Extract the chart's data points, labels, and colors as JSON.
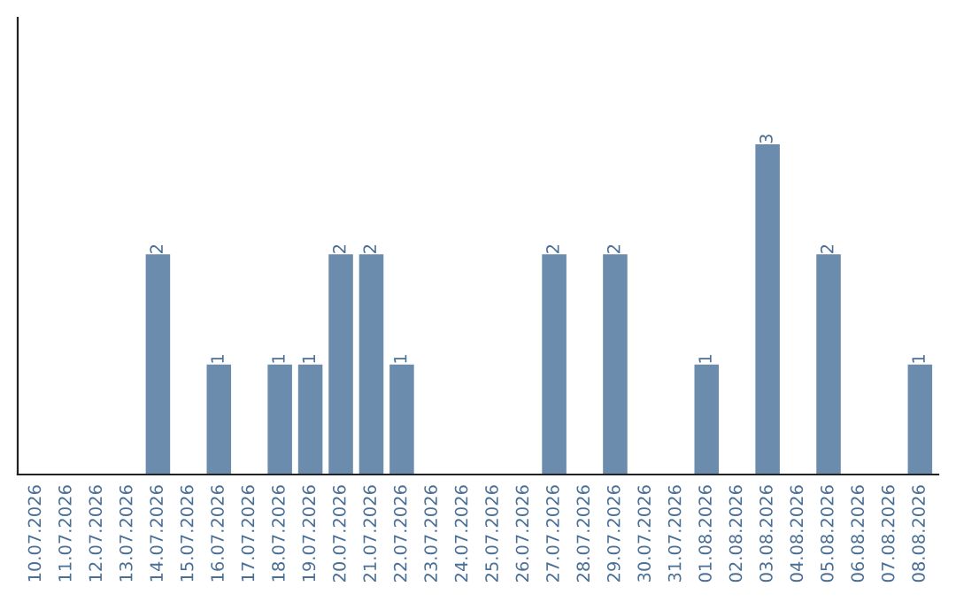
{
  "chart_data": {
    "type": "bar",
    "categories": [
      "10.07.2026",
      "11.07.2026",
      "12.07.2026",
      "13.07.2026",
      "14.07.2026",
      "15.07.2026",
      "16.07.2026",
      "17.07.2026",
      "18.07.2026",
      "19.07.2026",
      "20.07.2026",
      "21.07.2026",
      "22.07.2026",
      "23.07.2026",
      "24.07.2026",
      "25.07.2026",
      "26.07.2026",
      "27.07.2026",
      "28.07.2026",
      "29.07.2026",
      "30.07.2026",
      "31.07.2026",
      "01.08.2026",
      "02.08.2026",
      "03.08.2026",
      "04.08.2026",
      "05.08.2026",
      "06.08.2026",
      "07.08.2026",
      "08.08.2026"
    ],
    "values": [
      0,
      0,
      0,
      0,
      2,
      0,
      1,
      0,
      1,
      1,
      2,
      2,
      1,
      0,
      0,
      0,
      0,
      2,
      0,
      2,
      0,
      0,
      1,
      0,
      3,
      0,
      2,
      0,
      0,
      1
    ],
    "value_labels": [
      null,
      null,
      null,
      null,
      "2",
      null,
      "1",
      null,
      "1",
      "1",
      "2",
      "2",
      "1",
      null,
      null,
      null,
      null,
      "2",
      null,
      "2",
      null,
      null,
      "1",
      null,
      "3",
      null,
      "2",
      null,
      null,
      "1"
    ],
    "color": "#6b8cad",
    "ylim": [
      0,
      4.15
    ],
    "tick_labels": "x",
    "grid": false
  }
}
